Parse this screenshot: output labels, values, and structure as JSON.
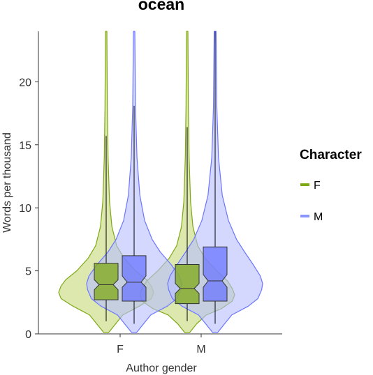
{
  "chart_data": {
    "type": "violin",
    "title": "ocean",
    "xlabel": "Author gender",
    "ylabel": "Words per thousand",
    "categories": [
      "F",
      "M"
    ],
    "ylim": [
      0,
      24
    ],
    "yticks": [
      0,
      5,
      10,
      15,
      20
    ],
    "grid": false,
    "legend": {
      "title": "Character",
      "placement": "right",
      "entries": [
        {
          "label": "F",
          "color": "#7da813"
        },
        {
          "label": "M",
          "color": "#8a95ff"
        }
      ]
    },
    "series": [
      {
        "name": "F",
        "color": "#7da813",
        "fill": "#c7d97a",
        "groups": [
          {
            "category": "F",
            "whisker_low": 1.0,
            "q1": 2.7,
            "median": 3.9,
            "q3": 5.6,
            "whisker_high": 15.7,
            "max": 24.0,
            "notch_low": 3.5,
            "notch_high": 4.3,
            "density": [
              [
                0.1,
                0.05
              ],
              [
                0.8,
                0.2
              ],
              [
                1.5,
                0.35
              ],
              [
                2.2,
                0.7
              ],
              [
                2.8,
                0.95
              ],
              [
                3.3,
                1.0
              ],
              [
                3.8,
                0.95
              ],
              [
                4.3,
                0.85
              ],
              [
                5.0,
                0.62
              ],
              [
                6.0,
                0.38
              ],
              [
                7.0,
                0.22
              ],
              [
                8.5,
                0.12
              ],
              [
                10.5,
                0.07
              ],
              [
                14,
                0.04
              ],
              [
                18,
                0.025
              ],
              [
                24,
                0.015
              ]
            ]
          },
          {
            "category": "M",
            "whisker_low": 1.0,
            "q1": 2.4,
            "median": 3.6,
            "q3": 5.5,
            "whisker_high": 16.4,
            "max": 24.0,
            "notch_low": 3.2,
            "notch_high": 4.0,
            "density": [
              [
                0.1,
                0.05
              ],
              [
                0.8,
                0.2
              ],
              [
                1.5,
                0.4
              ],
              [
                2.0,
                0.72
              ],
              [
                2.6,
                0.95
              ],
              [
                3.1,
                1.0
              ],
              [
                3.6,
                0.95
              ],
              [
                4.2,
                0.85
              ],
              [
                5.0,
                0.62
              ],
              [
                6.0,
                0.38
              ],
              [
                7.0,
                0.22
              ],
              [
                8.5,
                0.12
              ],
              [
                10.5,
                0.07
              ],
              [
                14,
                0.04
              ],
              [
                18,
                0.025
              ],
              [
                24,
                0.015
              ]
            ]
          }
        ]
      },
      {
        "name": "M",
        "color": "#6b76ff",
        "fill": "#b7beff",
        "groups": [
          {
            "category": "F",
            "whisker_low": 0.8,
            "q1": 2.6,
            "median": 4.1,
            "q3": 6.2,
            "whisker_high": 18.1,
            "max": 24.0,
            "notch_low": 3.7,
            "notch_high": 4.6,
            "density": [
              [
                0.1,
                0.05
              ],
              [
                0.8,
                0.2
              ],
              [
                1.5,
                0.35
              ],
              [
                2.2,
                0.7
              ],
              [
                2.8,
                0.9
              ],
              [
                3.5,
                0.98
              ],
              [
                4.0,
                1.0
              ],
              [
                4.6,
                0.95
              ],
              [
                5.5,
                0.78
              ],
              [
                6.5,
                0.55
              ],
              [
                7.5,
                0.38
              ],
              [
                9.0,
                0.22
              ],
              [
                11,
                0.12
              ],
              [
                14,
                0.06
              ],
              [
                18,
                0.03
              ],
              [
                24,
                0.015
              ]
            ]
          },
          {
            "category": "M",
            "whisker_low": 0.8,
            "q1": 2.6,
            "median": 4.2,
            "q3": 6.9,
            "whisker_high": 24.0,
            "max": 24.0,
            "notch_low": 3.7,
            "notch_high": 4.7,
            "density": [
              [
                0.1,
                0.05
              ],
              [
                0.8,
                0.2
              ],
              [
                1.5,
                0.35
              ],
              [
                2.2,
                0.7
              ],
              [
                2.8,
                0.9
              ],
              [
                3.5,
                0.98
              ],
              [
                4.0,
                1.0
              ],
              [
                4.6,
                0.95
              ],
              [
                5.5,
                0.8
              ],
              [
                6.5,
                0.62
              ],
              [
                7.5,
                0.45
              ],
              [
                9.0,
                0.28
              ],
              [
                11,
                0.15
              ],
              [
                14,
                0.07
              ],
              [
                18,
                0.035
              ],
              [
                24,
                0.02
              ]
            ]
          }
        ]
      }
    ]
  }
}
